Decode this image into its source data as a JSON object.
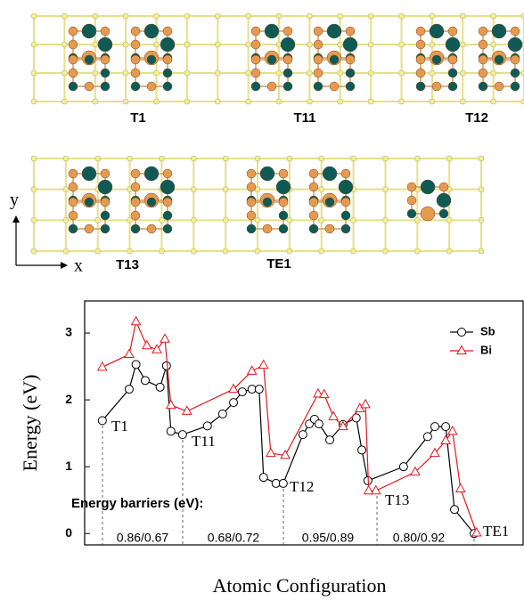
{
  "structures": {
    "labels": [
      "T1",
      "T11",
      "T12",
      "T13",
      "TE1"
    ],
    "axis_y": "y",
    "axis_x": "x"
  },
  "chart_data": {
    "type": "line",
    "y_label": "Energy (eV)",
    "x_label": "Atomic Configuration",
    "ylim": [
      -0.17,
      3.48
    ],
    "yticks": [
      0,
      1,
      2,
      3
    ],
    "xlim": [
      -0.44,
      10.49
    ],
    "legend": "top-right",
    "grid": false,
    "series": [
      {
        "name": "Sb",
        "color": "#000000",
        "marker": "circle",
        "x": [
          0,
          0.67,
          0.84,
          1.07,
          1.44,
          1.6,
          1.71,
          2.0,
          2.62,
          3.0,
          3.27,
          3.49,
          3.73,
          3.91,
          4.02,
          4.33,
          4.51,
          5.0,
          5.16,
          5.29,
          5.4,
          5.67,
          6.0,
          6.33,
          6.47,
          6.62,
          7.51,
          8.11,
          8.29,
          8.56,
          8.78,
          9.27
        ],
        "values": [
          1.69,
          2.16,
          2.53,
          2.29,
          2.19,
          2.51,
          1.53,
          1.48,
          1.61,
          1.79,
          1.96,
          2.12,
          2.16,
          2.16,
          0.84,
          0.75,
          0.75,
          1.48,
          1.64,
          1.71,
          1.64,
          1.4,
          1.63,
          1.73,
          1.25,
          0.79,
          1.0,
          1.45,
          1.6,
          1.6,
          0.36,
          0
        ]
      },
      {
        "name": "Bi",
        "color": "#e0191f",
        "marker": "triangle",
        "x": [
          0,
          0.67,
          0.84,
          1.11,
          1.36,
          1.56,
          1.71,
          2.11,
          3.27,
          3.73,
          4.02,
          4.2,
          4.56,
          5.38,
          5.53,
          5.76,
          6.0,
          6.42,
          6.56,
          6.64,
          6.82,
          7.8,
          8.29,
          8.56,
          8.73,
          8.93,
          9.33
        ],
        "values": [
          2.49,
          2.68,
          3.17,
          2.81,
          2.75,
          2.91,
          1.92,
          1.83,
          2.16,
          2.43,
          2.52,
          1.2,
          1.17,
          2.09,
          2.08,
          1.75,
          1.6,
          1.87,
          1.93,
          0.64,
          0.64,
          0.92,
          1.2,
          1.39,
          1.53,
          0.67,
          0.01
        ]
      }
    ],
    "annotations": [
      "T1",
      "T11",
      "T12",
      "T13",
      "TE1"
    ],
    "barriers_title": "Energy barriers (eV):",
    "barriers": [
      "0.86/0.67",
      "0.68/0.72",
      "0.95/0.89",
      "0.80/0.92"
    ]
  }
}
